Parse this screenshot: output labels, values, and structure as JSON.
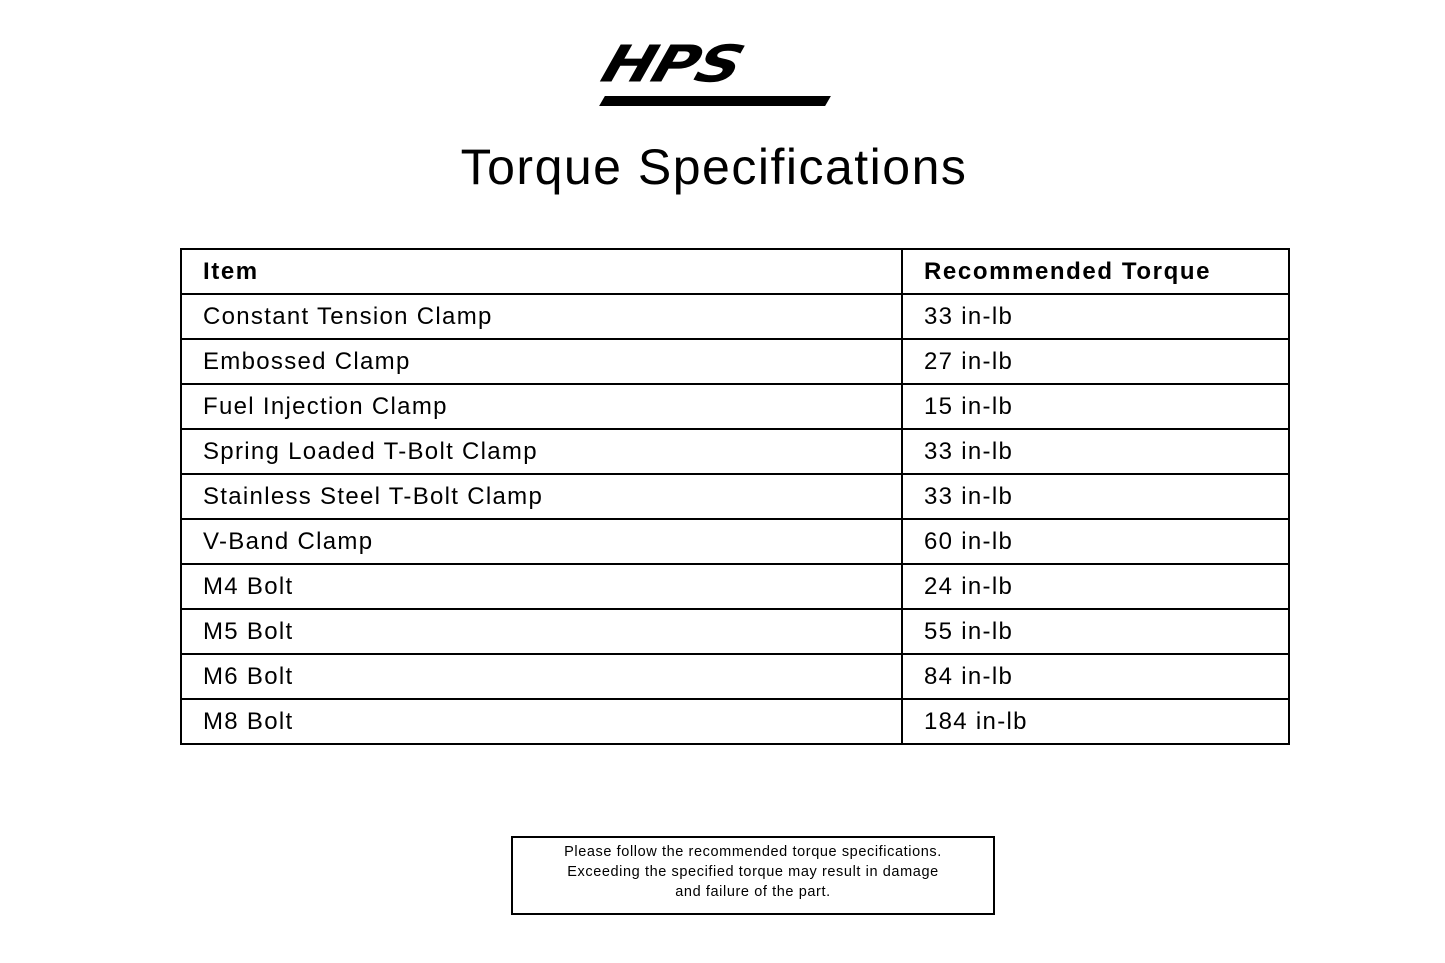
{
  "logo": {
    "text": "HPS"
  },
  "title": "Torque Specifications",
  "table": {
    "headers": [
      "Item",
      "Recommended Torque"
    ],
    "rows": [
      [
        "Constant Tension Clamp",
        "33 in-lb"
      ],
      [
        "Embossed Clamp",
        "27 in-lb"
      ],
      [
        "Fuel Injection Clamp",
        "15 in-lb"
      ],
      [
        "Spring Loaded T-Bolt Clamp",
        "33 in-lb"
      ],
      [
        "Stainless Steel T-Bolt Clamp",
        "33 in-lb"
      ],
      [
        "V-Band Clamp",
        "60 in-lb"
      ],
      [
        "M4 Bolt",
        "24 in-lb"
      ],
      [
        "M5 Bolt",
        "55 in-lb"
      ],
      [
        "M6 Bolt",
        "84 in-lb"
      ],
      [
        "M8 Bolt",
        "184 in-lb"
      ]
    ]
  },
  "note": {
    "lines": [
      "Please follow the recommended torque specifications.",
      "Exceeding the specified torque may result in damage",
      "and failure of the part."
    ]
  }
}
